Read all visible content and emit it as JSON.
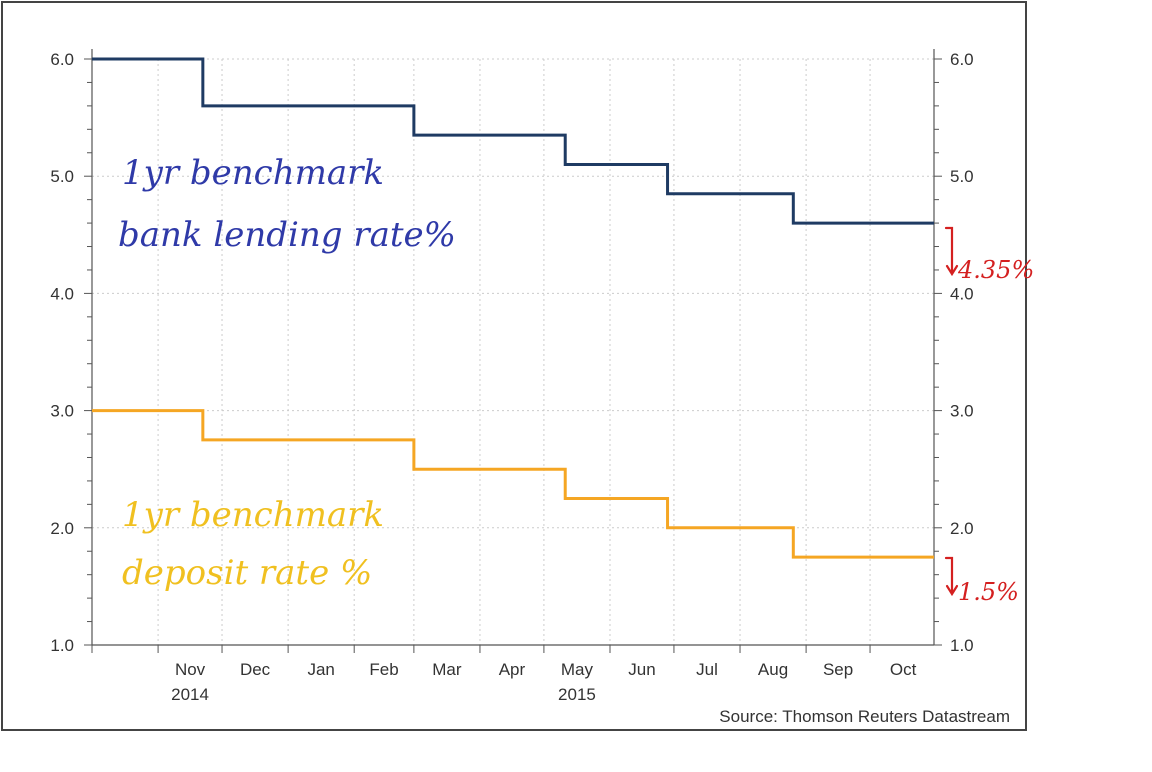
{
  "chart_data": {
    "type": "line",
    "title": "",
    "xlabel": "",
    "ylabel": "",
    "ylim": [
      1.0,
      6.0
    ],
    "yticks": [
      "1.0",
      "2.0",
      "3.0",
      "4.0",
      "5.0",
      "6.0"
    ],
    "xlim": [
      "2014-10-01",
      "2015-10-31"
    ],
    "month_labels": [
      {
        "label": "Nov",
        "date": "2014-11-01"
      },
      {
        "label": "Dec",
        "date": "2014-12-01"
      },
      {
        "label": "Jan",
        "date": "2015-01-01"
      },
      {
        "label": "Feb",
        "date": "2015-02-01"
      },
      {
        "label": "Mar",
        "date": "2015-03-01"
      },
      {
        "label": "Apr",
        "date": "2015-04-01"
      },
      {
        "label": "May",
        "date": "2015-05-01"
      },
      {
        "label": "Jun",
        "date": "2015-06-01"
      },
      {
        "label": "Jul",
        "date": "2015-07-01"
      },
      {
        "label": "Aug",
        "date": "2015-08-01"
      },
      {
        "label": "Sep",
        "date": "2015-09-01"
      },
      {
        "label": "Oct",
        "date": "2015-10-01"
      }
    ],
    "year_labels": [
      {
        "label": "2014",
        "date": "2014-11-01"
      },
      {
        "label": "2015",
        "date": "2015-05-01"
      }
    ],
    "grid": true,
    "series": [
      {
        "name": "",
        "color": "#1f3b63",
        "points": [
          {
            "x": "2014-10-01",
            "y": 6.0
          },
          {
            "x": "2014-11-22",
            "y": 5.6
          },
          {
            "x": "2015-03-01",
            "y": 5.35
          },
          {
            "x": "2015-05-11",
            "y": 5.1
          },
          {
            "x": "2015-06-28",
            "y": 4.85
          },
          {
            "x": "2015-08-26",
            "y": 4.6
          },
          {
            "x": "2015-10-31",
            "y": 4.6
          }
        ]
      },
      {
        "name": "",
        "color": "#f5a623",
        "points": [
          {
            "x": "2014-10-01",
            "y": 3.0
          },
          {
            "x": "2014-11-22",
            "y": 2.75
          },
          {
            "x": "2015-03-01",
            "y": 2.5
          },
          {
            "x": "2015-05-11",
            "y": 2.25
          },
          {
            "x": "2015-06-28",
            "y": 2.0
          },
          {
            "x": "2015-08-26",
            "y": 1.75
          },
          {
            "x": "2015-10-31",
            "y": 1.75
          }
        ]
      }
    ],
    "annotations": {
      "lending_line1": "1yr benchmark",
      "lending_line2": "bank lending rate%",
      "deposit_line1": "1yr benchmark",
      "deposit_line2": "deposit rate %",
      "lending_new": "4.35%",
      "deposit_new": "1.5%"
    },
    "source": "Source: Thomson Reuters Datastream"
  }
}
